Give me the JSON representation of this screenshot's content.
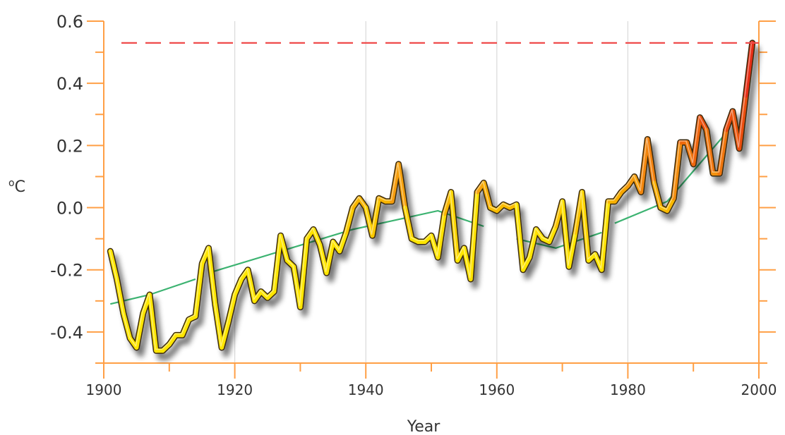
{
  "chart_data": {
    "type": "line",
    "xlabel": "Year",
    "ylabel": "°C",
    "ylabel_parts": {
      "degree": "o",
      "unit": "C"
    },
    "xlim": [
      1900,
      2000
    ],
    "ylim": [
      -0.5,
      0.6
    ],
    "x_ticks": [
      1900,
      1920,
      1940,
      1960,
      1980,
      2000
    ],
    "x_tick_labels": [
      "1900",
      "1920",
      "1940",
      "1960",
      "1980",
      "2000"
    ],
    "y_ticks": [
      -0.4,
      -0.2,
      0.0,
      0.2,
      0.4,
      0.6
    ],
    "y_tick_labels": [
      "-0.4",
      "-0.2",
      "0.0",
      "0.2",
      "0.4",
      "0.6"
    ],
    "grid": "vertical",
    "legend": "none",
    "series": [
      {
        "style": "annual",
        "x": [
          1901,
          1902,
          1903,
          1904,
          1905,
          1906,
          1907,
          1908,
          1909,
          1910,
          1911,
          1912,
          1913,
          1914,
          1915,
          1916,
          1917,
          1918,
          1919,
          1920,
          1921,
          1922,
          1923,
          1924,
          1925,
          1926,
          1927,
          1928,
          1929,
          1930,
          1931,
          1932,
          1933,
          1934,
          1935,
          1936,
          1937,
          1938,
          1939,
          1940,
          1941,
          1942,
          1943,
          1944,
          1945,
          1946,
          1947,
          1948,
          1949,
          1950,
          1951,
          1952,
          1953,
          1954,
          1955,
          1956,
          1957,
          1958,
          1959,
          1960,
          1961,
          1962,
          1963,
          1964,
          1965,
          1966,
          1967,
          1968,
          1969,
          1970,
          1971,
          1972,
          1973,
          1974,
          1975,
          1976,
          1977,
          1978,
          1979,
          1980,
          1981,
          1982,
          1983,
          1984,
          1985,
          1986,
          1987,
          1988,
          1989,
          1990,
          1991,
          1992,
          1993,
          1994,
          1995,
          1996,
          1997,
          1998,
          1999
        ],
        "values": [
          -0.14,
          -0.23,
          -0.34,
          -0.42,
          -0.45,
          -0.34,
          -0.28,
          -0.46,
          -0.46,
          -0.44,
          -0.41,
          -0.41,
          -0.36,
          -0.35,
          -0.18,
          -0.13,
          -0.31,
          -0.45,
          -0.37,
          -0.28,
          -0.23,
          -0.2,
          -0.3,
          -0.27,
          -0.29,
          -0.27,
          -0.09,
          -0.17,
          -0.19,
          -0.32,
          -0.1,
          -0.07,
          -0.12,
          -0.21,
          -0.11,
          -0.14,
          -0.08,
          0.0,
          0.03,
          0.0,
          -0.09,
          0.03,
          0.02,
          0.02,
          0.14,
          0.0,
          -0.1,
          -0.11,
          -0.11,
          -0.09,
          -0.16,
          -0.02,
          0.05,
          -0.17,
          -0.13,
          -0.23,
          0.05,
          0.08,
          0.0,
          -0.01,
          0.01,
          0.0,
          0.01,
          -0.2,
          -0.16,
          -0.07,
          -0.1,
          -0.11,
          -0.06,
          0.02,
          -0.19,
          -0.08,
          0.05,
          -0.17,
          -0.15,
          -0.2,
          0.02,
          0.02,
          0.05,
          0.07,
          0.1,
          0.05,
          0.22,
          0.08,
          0.0,
          -0.01,
          0.03,
          0.21,
          0.21,
          0.14,
          0.29,
          0.25,
          0.11,
          0.11,
          0.25,
          0.31,
          0.19,
          0.36,
          0.53
        ]
      },
      {
        "style": "trend",
        "x": [
          1901,
          1907,
          1914,
          1916,
          1927,
          1938,
          1951,
          1958,
          1963,
          1969,
          1976,
          1978,
          1986,
          1995
        ],
        "values": [
          -0.31,
          -0.28,
          -0.23,
          -0.21,
          -0.14,
          -0.07,
          -0.01,
          -0.06,
          -0.1,
          -0.13,
          -0.08,
          -0.05,
          0.02,
          0.24
        ],
        "breaks_after": [
          1914,
          1958,
          1976
        ],
        "color": "#3cb371"
      }
    ],
    "reference_line": {
      "y": 0.53,
      "style": "dashed",
      "color": "#ef4b4b"
    },
    "colors": {
      "axis": "#ff9f45",
      "grid": "#d9d9d9",
      "cool": "#ffe600",
      "warm": "#e62e12",
      "text": "#333333"
    }
  }
}
